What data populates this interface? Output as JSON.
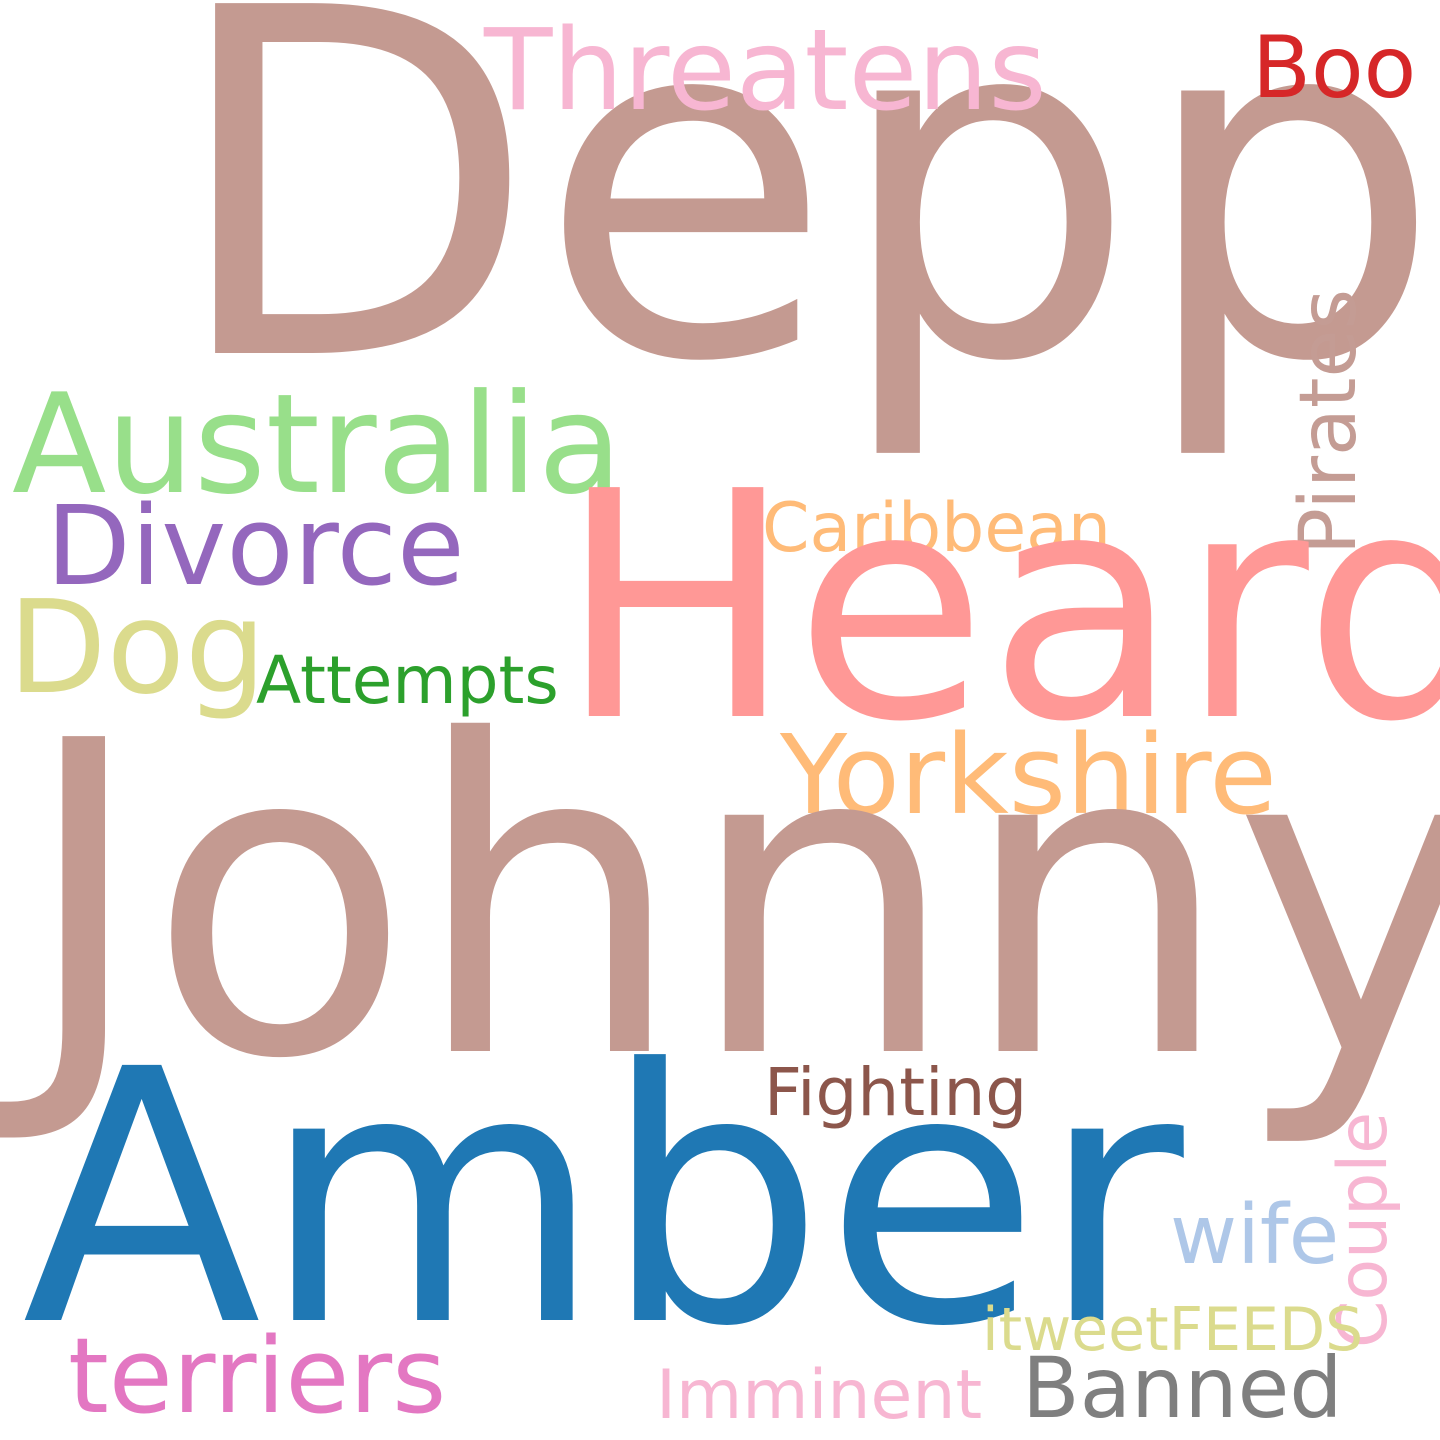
{
  "words": {
    "depp": {
      "text": "Depp",
      "color": "#c49a91"
    },
    "johnny": {
      "text": "Johnny",
      "color": "#c49a91"
    },
    "amber": {
      "text": "Amber",
      "color": "#1f78b4"
    },
    "heard": {
      "text": "Heard",
      "color": "#ff9896"
    },
    "australia": {
      "text": "Australia",
      "color": "#98df8a"
    },
    "threatens": {
      "text": "Threatens",
      "color": "#f7b6d2"
    },
    "boo": {
      "text": "Boo",
      "color": "#d62728"
    },
    "divorce": {
      "text": "Divorce",
      "color": "#9467bd"
    },
    "dog": {
      "text": "Dog",
      "color": "#dbdb8d"
    },
    "caribbean": {
      "text": "Caribbean",
      "color": "#ffbb78"
    },
    "pirates": {
      "text": "Pirates",
      "color": "#c49c94"
    },
    "attempts": {
      "text": "Attempts",
      "color": "#2ca02c"
    },
    "yorkshire": {
      "text": "Yorkshire",
      "color": "#ffbb78"
    },
    "fighting": {
      "text": "Fighting",
      "color": "#8c564b"
    },
    "couple": {
      "text": "Couple",
      "color": "#f7b6d2"
    },
    "wife": {
      "text": "wife",
      "color": "#aec7e8"
    },
    "itweetfeeds": {
      "text": "itweetFEEDS",
      "color": "#dbdb8d"
    },
    "terriers": {
      "text": "terriers",
      "color": "#e377c2"
    },
    "imminent": {
      "text": "Imminent",
      "color": "#f7b6d2"
    },
    "banned": {
      "text": "Banned",
      "color": "#7f7f7f"
    }
  }
}
